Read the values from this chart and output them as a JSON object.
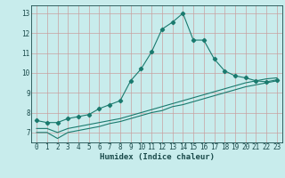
{
  "title": "",
  "xlabel": "Humidex (Indice chaleur)",
  "background_color": "#c8ecec",
  "grid_color": "#c8a0a0",
  "line_color": "#1a7a6e",
  "xlim": [
    -0.5,
    23.5
  ],
  "ylim": [
    6.5,
    13.4
  ],
  "xticks": [
    0,
    1,
    2,
    3,
    4,
    5,
    6,
    7,
    8,
    9,
    10,
    11,
    12,
    13,
    14,
    15,
    16,
    17,
    18,
    19,
    20,
    21,
    22,
    23
  ],
  "yticks": [
    7,
    8,
    9,
    10,
    11,
    12,
    13
  ],
  "main_x": [
    0,
    1,
    2,
    3,
    4,
    5,
    6,
    7,
    8,
    9,
    10,
    11,
    12,
    13,
    14,
    15,
    16,
    17,
    18,
    19,
    20,
    21,
    22,
    23
  ],
  "main_y": [
    7.6,
    7.5,
    7.5,
    7.7,
    7.8,
    7.9,
    8.2,
    8.4,
    8.6,
    9.6,
    10.2,
    11.05,
    12.2,
    12.55,
    13.0,
    11.65,
    11.65,
    10.7,
    10.1,
    9.85,
    9.75,
    9.6,
    9.55,
    9.65
  ],
  "line2_x": [
    0,
    1,
    2,
    3,
    4,
    5,
    6,
    7,
    8,
    9,
    10,
    11,
    12,
    13,
    14,
    15,
    16,
    17,
    18,
    19,
    20,
    21,
    22,
    23
  ],
  "line2_y": [
    7.0,
    7.0,
    6.7,
    7.0,
    7.1,
    7.2,
    7.3,
    7.45,
    7.55,
    7.7,
    7.85,
    8.0,
    8.1,
    8.3,
    8.4,
    8.55,
    8.7,
    8.85,
    9.0,
    9.15,
    9.3,
    9.4,
    9.5,
    9.6
  ],
  "line3_x": [
    0,
    1,
    2,
    3,
    4,
    5,
    6,
    7,
    8,
    9,
    10,
    11,
    12,
    13,
    14,
    15,
    16,
    17,
    18,
    19,
    20,
    21,
    22,
    23
  ],
  "line3_y": [
    7.2,
    7.2,
    7.0,
    7.2,
    7.3,
    7.4,
    7.5,
    7.6,
    7.7,
    7.85,
    8.0,
    8.15,
    8.3,
    8.45,
    8.6,
    8.75,
    8.9,
    9.05,
    9.2,
    9.35,
    9.5,
    9.6,
    9.7,
    9.75
  ],
  "xlabel_fontsize": 6.5,
  "tick_fontsize": 5.5
}
